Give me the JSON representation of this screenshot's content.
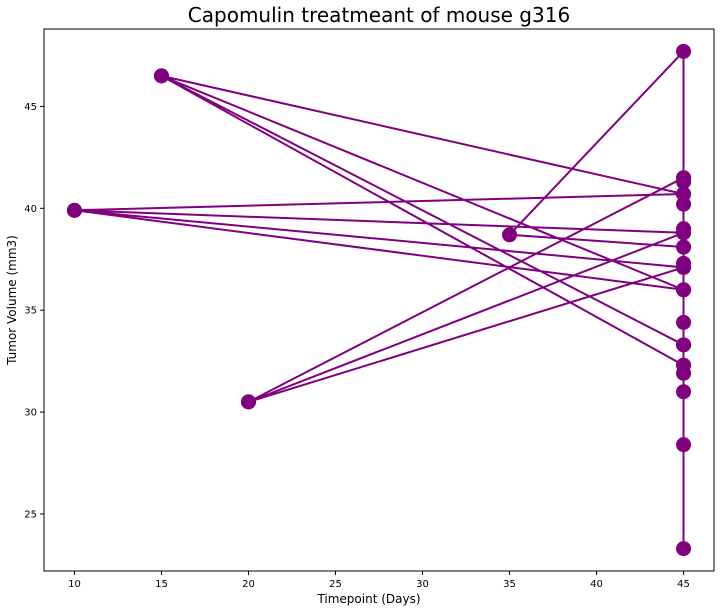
{
  "chart_data": {
    "type": "line",
    "title": "Capomulin treatmeant of mouse g316",
    "xlabel": "Timepoint (Days)",
    "ylabel": "Tumor Volume (mm3)",
    "xlim": [
      8.25,
      46.75
    ],
    "ylim": [
      22.2,
      48.8
    ],
    "xticks": [
      10,
      15,
      20,
      25,
      30,
      35,
      40,
      45
    ],
    "yticks": [
      25,
      30,
      35,
      40,
      45
    ],
    "grid": false,
    "legend": "none",
    "color": "#800080",
    "series": [
      {
        "x": [
          45,
          45,
          45,
          45,
          45,
          45,
          45,
          45,
          45,
          45,
          45,
          45,
          45,
          45,
          45,
          45,
          45,
          20,
          45,
          10,
          45,
          15,
          45,
          45,
          35,
          45,
          45,
          20,
          45,
          10,
          45,
          15,
          45
        ],
        "y": [
          23.3,
          28.4,
          31.0,
          31.9,
          32.3,
          33.3,
          34.4,
          36.0,
          37.1,
          37.3,
          38.1,
          38.8,
          39.0,
          40.2,
          40.7,
          41.3,
          41.5,
          30.5,
          38.8,
          39.9,
          40.7,
          46.5,
          32.3,
          47.7,
          38.7,
          38.1,
          41.5,
          30.5,
          37.1,
          39.9,
          36.0,
          46.5,
          33.3
        ]
      }
    ]
  }
}
